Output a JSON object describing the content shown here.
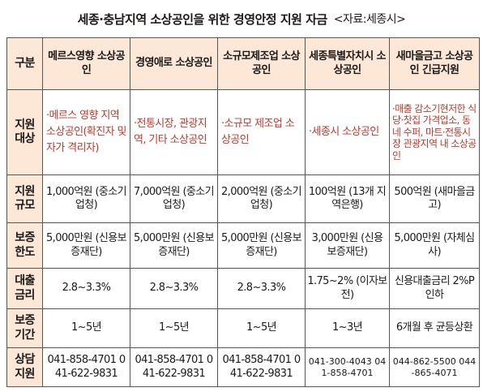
{
  "title": {
    "main": "세종·충남지역 소상공인을 위한 경영안정 지원 자금",
    "source": "<자료:세종시>"
  },
  "table": {
    "corner": "구분",
    "columns": [
      "메르스영향 소상공인",
      "경영애로 소상공인",
      "소규모제조업 소상공인",
      "세종특별자치시 소상공인",
      "새마을금고 소상공인 긴급지원"
    ],
    "rows": [
      {
        "label": "지원 대상",
        "cells": [
          "·메르스 영향 지역 소상공인(확진자 및 자가 격리자)",
          "·전통시장, 관광지역, 기타 소상공인",
          "·소규모 제조업 소상공인",
          "·세종시 소상공인",
          "·매출 감소기현저한 식당·찻집 가격업소, 동네 수퍼, 마트·전통시장 관광지역 내 소상공인"
        ]
      },
      {
        "label": "지원 규모",
        "cells": [
          "1,000억원 (중소기업청)",
          "7,000억원 (중소기업청)",
          "2,000억원 (중소기업청)",
          "100억원 (13개 지역은행)",
          "500억원 (새마을금고)"
        ]
      },
      {
        "label": "보증 한도",
        "cells": [
          "5,000만원 (신용보증재단)",
          "5,000만원 (신용보증재단)",
          "5,000만원 (신용보증재단)",
          "3,000만원 (신용보증재단)",
          "5,000만원 (자체심사)"
        ]
      },
      {
        "label": "대출 금리",
        "cells": [
          "2.8~3.3%",
          "2.8~3.3%",
          "2.8~3.3%",
          "1.75~2% (이자보전)",
          "신용대출금리 2%P인하"
        ]
      },
      {
        "label": "보증 기간",
        "cells": [
          "1~5년",
          "1~5년",
          "1~5년",
          "1~3년",
          "6개월 후 균등상환"
        ]
      },
      {
        "label": "상담 지원",
        "cells": [
          "041-858-4701 041-622-9831",
          "041-858-4701 041-622-9831",
          "041-858-4701 041-622-9831",
          "041-300-4043 041-858-4701",
          "044-862-5500 044-865-4071"
        ]
      }
    ]
  }
}
